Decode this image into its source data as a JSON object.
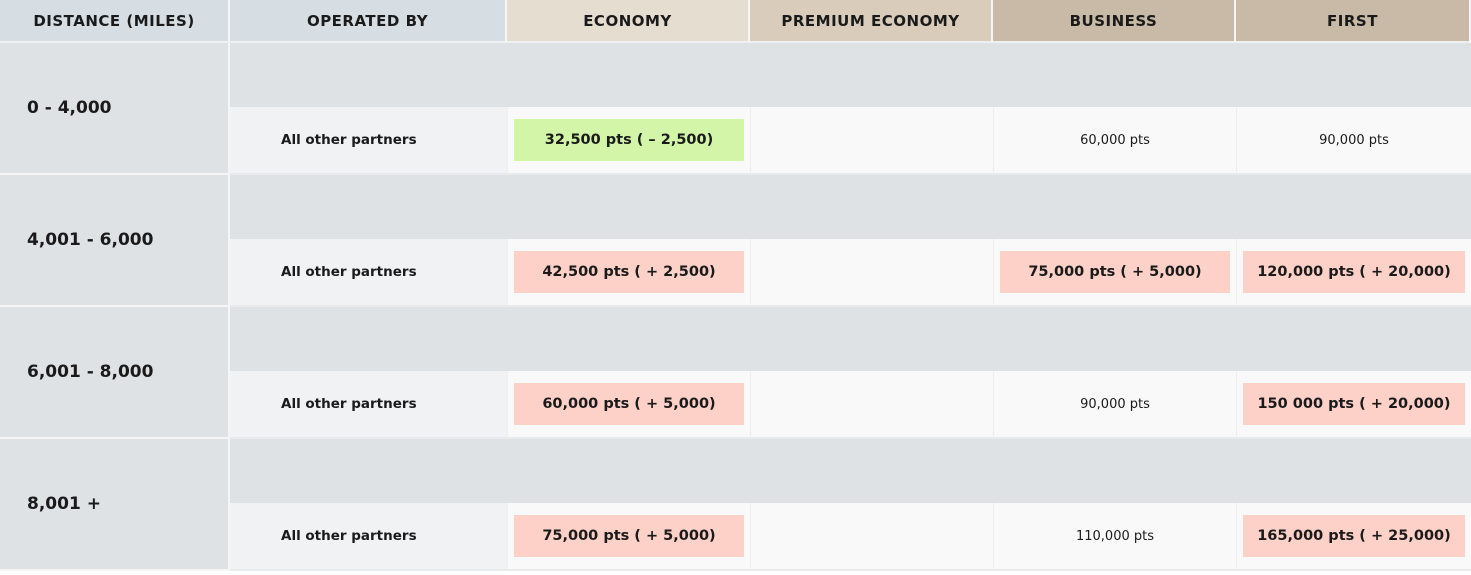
{
  "headers": [
    "DISTANCE (MILES)",
    "OPERATED BY",
    "ECONOMY",
    "PREMIUM ECONOMY",
    "BUSINESS",
    "FIRST"
  ],
  "colors": {
    "increase": "#fdd0c8",
    "decrease": "#d3f5a8"
  },
  "rows": [
    {
      "distance": "0 - 4,000",
      "operated_by": "All other partners",
      "economy": "32,500 pts ( – 2,500)",
      "economy_change": "decrease",
      "premium_economy": "",
      "business": "60,000 pts",
      "business_change": "none",
      "first": "90,000 pts",
      "first_change": "none"
    },
    {
      "distance": "4,001 - 6,000",
      "operated_by": "All other partners",
      "economy": "42,500 pts ( + 2,500)",
      "economy_change": "increase",
      "premium_economy": "",
      "business": "75,000 pts ( + 5,000)",
      "business_change": "increase",
      "first": "120,000 pts ( + 20,000)",
      "first_change": "increase"
    },
    {
      "distance": "6,001 - 8,000",
      "operated_by": "All other partners",
      "economy": "60,000 pts ( + 5,000)",
      "economy_change": "increase",
      "premium_economy": "",
      "business": "90,000 pts",
      "business_change": "none",
      "first": "150 000 pts ( + 20,000)",
      "first_change": "increase"
    },
    {
      "distance": "8,001 +",
      "operated_by": "All other partners",
      "economy": "75,000 pts ( + 5,000)",
      "economy_change": "increase",
      "premium_economy": "",
      "business": "110,000 pts",
      "business_change": "none",
      "first": "165,000 pts ( + 25,000)",
      "first_change": "increase"
    }
  ]
}
